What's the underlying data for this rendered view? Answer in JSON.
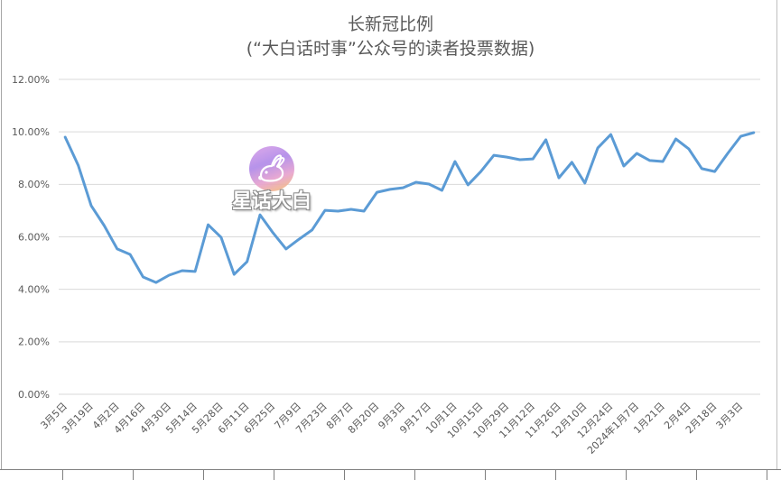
{
  "chart_data": {
    "type": "line",
    "title": "长新冠比例",
    "subtitle": "(“大白话时事”公众号的读者投票数据)",
    "categories": [
      "3月5日",
      "",
      "3月19日",
      "",
      "4月2日",
      "",
      "4月16日",
      "",
      "4月30日",
      "",
      "5月14日",
      "",
      "5月28日",
      "",
      "6月11日",
      "",
      "6月25日",
      "",
      "7月9日",
      "",
      "7月23日",
      "",
      "8月7日",
      "",
      "8月20日",
      "",
      "9月3日",
      "",
      "9月17日",
      "",
      "10月1日",
      "",
      "10月15日",
      "",
      "10月29日",
      "",
      "11月12日",
      "",
      "11月26日",
      "",
      "12月10日",
      "",
      "12月24日",
      "",
      "2024年1月7日",
      "",
      "1月21日",
      "",
      "2月4日",
      "",
      "2月18日",
      "",
      "3月3日",
      ""
    ],
    "series": [
      {
        "color": "#5b9bd5",
        "values": [
          9.8,
          8.73,
          7.19,
          6.43,
          5.54,
          5.33,
          4.47,
          4.26,
          4.54,
          4.71,
          4.68,
          6.46,
          5.98,
          4.57,
          5.05,
          6.84,
          6.15,
          5.54,
          5.91,
          6.26,
          7.01,
          6.98,
          7.05,
          6.98,
          7.7,
          7.81,
          7.87,
          8.08,
          8.01,
          7.77,
          8.87,
          7.98,
          8.49,
          9.11,
          9.04,
          8.94,
          8.97,
          9.7,
          8.25,
          8.84,
          8.05,
          9.39,
          9.9,
          8.7,
          9.18,
          8.91,
          8.87,
          9.73,
          9.35,
          8.6,
          8.49,
          9.18,
          9.83,
          9.97
        ]
      }
    ],
    "ylim": [
      0,
      12
    ],
    "yticks": [
      0,
      2,
      4,
      6,
      8,
      10,
      12
    ],
    "ytick_labels": [
      "0.00%",
      "2.00%",
      "4.00%",
      "6.00%",
      "8.00%",
      "10.00%",
      "12.00%"
    ],
    "grid": true,
    "legend": "none"
  },
  "watermark": {
    "text": "星话大白",
    "icon": "rabbit-icon"
  }
}
